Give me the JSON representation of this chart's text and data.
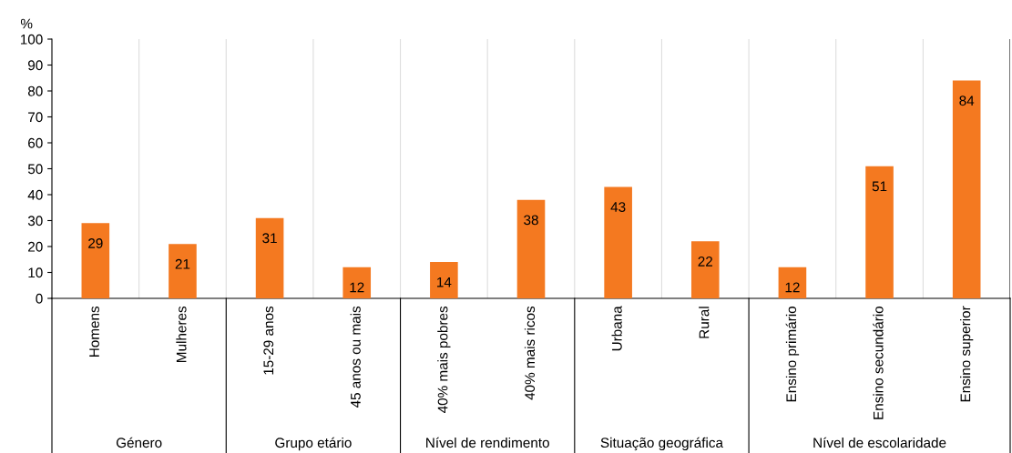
{
  "chart_data": {
    "type": "bar",
    "ylabel": "%",
    "categories": [
      "Homens",
      "Mulheres",
      "15-29 anos",
      "45 anos ou mais",
      "40% mais pobres",
      "40% mais ricos",
      "Urbana",
      "Rural",
      "Ensino primário",
      "Ensino secundário",
      "Ensino superior"
    ],
    "values": [
      29,
      21,
      31,
      12,
      14,
      38,
      43,
      22,
      12,
      51,
      84
    ],
    "color": "#f47920",
    "ylim": [
      0,
      100
    ],
    "yticks": [
      0,
      10,
      20,
      30,
      40,
      50,
      60,
      70,
      80,
      90,
      100
    ],
    "data_labels": true,
    "grid": "x",
    "annotations": [
      "Género",
      "Grupo etário",
      "Nível de rendimento",
      "Situação geográfica",
      "Nível de escolaridade"
    ]
  }
}
